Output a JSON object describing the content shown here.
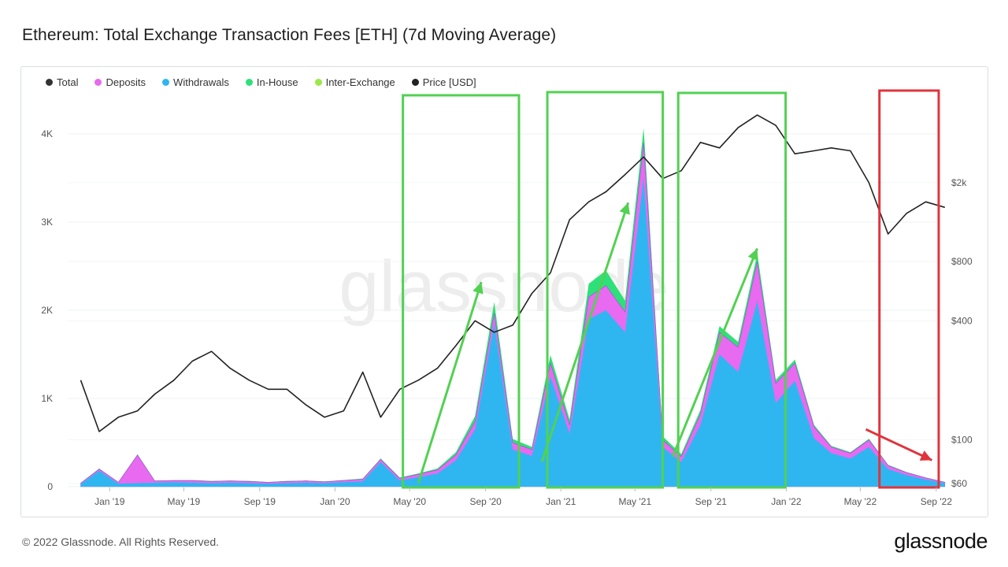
{
  "title": "Ethereum: Total Exchange Transaction Fees [ETH] (7d Moving Average)",
  "footer": {
    "copyright": "© 2022 Glassnode. All Rights Reserved.",
    "brand": "glassnode"
  },
  "watermark": "glassnode",
  "legend": [
    {
      "label": "Total",
      "color": "#333333"
    },
    {
      "label": "Deposits",
      "color": "#e86af0"
    },
    {
      "label": "Withdrawals",
      "color": "#2fb6f0"
    },
    {
      "label": "In-House",
      "color": "#2ee07a"
    },
    {
      "label": "Inter-Exchange",
      "color": "#9be84a"
    },
    {
      "label": "Price [USD]",
      "color": "#222222"
    }
  ],
  "chart_data": {
    "type": "area",
    "title": "Ethereum: Total Exchange Transaction Fees [ETH] (7d Moving Average)",
    "x_ticks": [
      "Jan '19",
      "May '19",
      "Sep '19",
      "Jan '20",
      "May '20",
      "Sep '20",
      "Jan '21",
      "May '21",
      "Sep '21",
      "Jan '22",
      "May '22",
      "Sep '22"
    ],
    "y_left_ticks": [
      "0",
      "1K",
      "2K",
      "3K",
      "4K"
    ],
    "y_left_range": [
      0,
      4000
    ],
    "y_right_ticks": [
      "$60",
      "$100",
      "$400",
      "$800",
      "$2k"
    ],
    "y_right_scale": "log",
    "dates": [
      "2018-11",
      "2018-12",
      "2019-01",
      "2019-02",
      "2019-03",
      "2019-04",
      "2019-05",
      "2019-06",
      "2019-07",
      "2019-08",
      "2019-09",
      "2019-10",
      "2019-11",
      "2019-12",
      "2020-01",
      "2020-02",
      "2020-03",
      "2020-04",
      "2020-05",
      "2020-06",
      "2020-07",
      "2020-08",
      "2020-09",
      "2020-10",
      "2020-11",
      "2020-12",
      "2021-01",
      "2021-02",
      "2021-03",
      "2021-04",
      "2021-05",
      "2021-06",
      "2021-07",
      "2021-08",
      "2021-09",
      "2021-10",
      "2021-11",
      "2021-12",
      "2022-01",
      "2022-02",
      "2022-03",
      "2022-04",
      "2022-05",
      "2022-06",
      "2022-07",
      "2022-08",
      "2022-09"
    ],
    "series": [
      {
        "name": "Withdrawals",
        "color": "#2fb6f0",
        "values": [
          30,
          180,
          35,
          40,
          45,
          50,
          45,
          40,
          45,
          40,
          35,
          40,
          45,
          40,
          50,
          60,
          280,
          70,
          110,
          150,
          300,
          650,
          1850,
          420,
          350,
          1250,
          600,
          1900,
          2000,
          1750,
          3500,
          450,
          280,
          700,
          1500,
          1300,
          2100,
          950,
          1200,
          550,
          380,
          320,
          450,
          200,
          130,
          80,
          40
        ]
      },
      {
        "name": "Deposits",
        "color": "#e86af0",
        "values": [
          10,
          20,
          15,
          320,
          20,
          20,
          25,
          20,
          20,
          20,
          15,
          20,
          20,
          15,
          20,
          25,
          30,
          25,
          30,
          40,
          60,
          90,
          120,
          80,
          70,
          150,
          100,
          250,
          280,
          230,
          400,
          80,
          60,
          120,
          250,
          280,
          450,
          220,
          200,
          130,
          70,
          60,
          80,
          40,
          30,
          20,
          10
        ]
      },
      {
        "name": "In-House",
        "color": "#2ee07a",
        "values": [
          3,
          5,
          3,
          5,
          3,
          3,
          4,
          4,
          4,
          4,
          3,
          4,
          4,
          4,
          5,
          6,
          10,
          8,
          10,
          15,
          30,
          60,
          120,
          40,
          30,
          90,
          60,
          150,
          170,
          130,
          160,
          40,
          30,
          50,
          70,
          60,
          90,
          40,
          40,
          20,
          12,
          10,
          12,
          8,
          5,
          4,
          3
        ]
      },
      {
        "name": "Inter-Exchange",
        "color": "#9be84a",
        "values": [
          0,
          0,
          0,
          0,
          0,
          0,
          0,
          0,
          0,
          0,
          0,
          0,
          0,
          0,
          0,
          0,
          0,
          0,
          0,
          0,
          0,
          0,
          0,
          0,
          0,
          0,
          0,
          0,
          0,
          0,
          0,
          0,
          0,
          0,
          0,
          0,
          0,
          0,
          0,
          0,
          0,
          0,
          0,
          0,
          0,
          0,
          0
        ]
      },
      {
        "name": "Price [USD]",
        "color": "#222222",
        "axis": "right",
        "values": [
          200,
          110,
          130,
          140,
          170,
          200,
          250,
          280,
          230,
          200,
          180,
          180,
          150,
          130,
          140,
          220,
          130,
          180,
          200,
          230,
          300,
          400,
          350,
          380,
          550,
          700,
          1300,
          1600,
          1800,
          2200,
          2700,
          2100,
          2300,
          3200,
          3000,
          3800,
          4400,
          3900,
          2800,
          2900,
          3000,
          2900,
          2000,
          1100,
          1400,
          1600,
          1500
        ]
      }
    ],
    "annotations": [
      {
        "type": "box",
        "color": "#52d152",
        "label": ""
      },
      {
        "type": "box",
        "color": "#52d152",
        "label": ""
      },
      {
        "type": "box",
        "color": "#52d152",
        "label": ""
      },
      {
        "type": "box",
        "color": "#e0343d",
        "label": ""
      }
    ]
  }
}
